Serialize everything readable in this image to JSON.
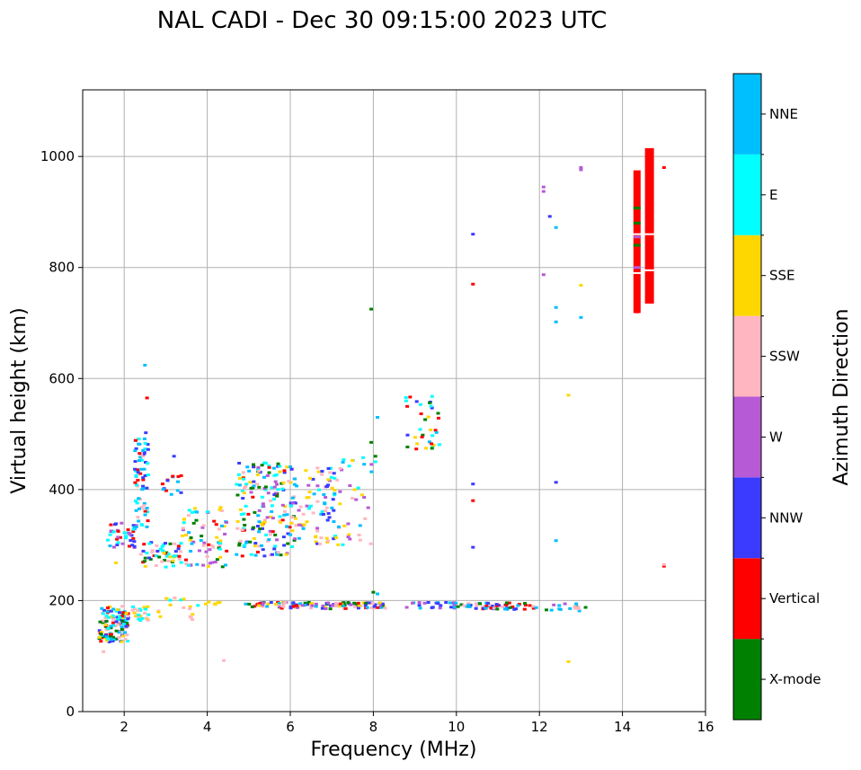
{
  "chart_data": {
    "type": "scatter",
    "title": "NAL CADI - Dec 30 09:15:00 2023 UTC",
    "xlabel": "Frequency (MHz)",
    "ylabel": "Virtual height (km)",
    "xlim": [
      1,
      16
    ],
    "ylim": [
      0,
      1120
    ],
    "xticks": [
      "2",
      "4",
      "6",
      "8",
      "10",
      "12",
      "14",
      "16"
    ],
    "yticks": [
      "0",
      "200",
      "400",
      "600",
      "800",
      "1000"
    ],
    "grid": true,
    "colorbar": {
      "label": "Azimuth Direction",
      "categories": [
        {
          "name": "X-mode",
          "color": "#008000"
        },
        {
          "name": "Vertical",
          "color": "#ff0000"
        },
        {
          "name": "NNW",
          "color": "#3b3bff"
        },
        {
          "name": "W",
          "color": "#b65ad6"
        },
        {
          "name": "SSW",
          "color": "#ffb6c1"
        },
        {
          "name": "SSE",
          "color": "#ffd700"
        },
        {
          "name": "E",
          "color": "#00ffff"
        },
        {
          "name": "NNE",
          "color": "#00bfff"
        }
      ]
    },
    "echoes": [
      {
        "f": 14.35,
        "h": 720,
        "dir": "Vertical"
      },
      {
        "f": 14.35,
        "h": 745,
        "dir": "Vertical"
      },
      {
        "f": 14.35,
        "h": 790,
        "dir": "Vertical"
      },
      {
        "f": 14.35,
        "h": 830,
        "dir": "Vertical"
      },
      {
        "f": 14.35,
        "h": 870,
        "dir": "Vertical"
      },
      {
        "f": 14.35,
        "h": 910,
        "dir": "Vertical"
      },
      {
        "f": 14.35,
        "h": 950,
        "dir": "Vertical"
      },
      {
        "f": 14.35,
        "h": 970,
        "dir": "Vertical"
      },
      {
        "f": 14.65,
        "h": 740,
        "dir": "Vertical"
      },
      {
        "f": 14.65,
        "h": 790,
        "dir": "Vertical"
      },
      {
        "f": 14.65,
        "h": 830,
        "dir": "Vertical"
      },
      {
        "f": 14.65,
        "h": 880,
        "dir": "Vertical"
      },
      {
        "f": 14.65,
        "h": 920,
        "dir": "Vertical"
      },
      {
        "f": 14.65,
        "h": 960,
        "dir": "Vertical"
      },
      {
        "f": 14.65,
        "h": 1000,
        "dir": "Vertical"
      },
      {
        "f": 14.35,
        "h": 840,
        "dir": "X-mode"
      },
      {
        "f": 14.35,
        "h": 880,
        "dir": "X-mode"
      },
      {
        "f": 14.35,
        "h": 905,
        "dir": "X-mode"
      },
      {
        "f": 14.35,
        "h": 855,
        "dir": "W"
      },
      {
        "f": 14.35,
        "h": 800,
        "dir": "W"
      },
      {
        "f": 15.0,
        "h": 980,
        "dir": "Vertical"
      },
      {
        "f": 15.0,
        "h": 262,
        "dir": "Vertical"
      },
      {
        "f": 15.0,
        "h": 265,
        "dir": "SSW"
      },
      {
        "f": 12.1,
        "h": 945,
        "dir": "W"
      },
      {
        "f": 12.1,
        "h": 937,
        "dir": "W"
      },
      {
        "f": 12.1,
        "h": 787,
        "dir": "W"
      },
      {
        "f": 12.25,
        "h": 892,
        "dir": "NNW"
      },
      {
        "f": 12.4,
        "h": 872,
        "dir": "NNE"
      },
      {
        "f": 12.4,
        "h": 728,
        "dir": "NNE"
      },
      {
        "f": 12.4,
        "h": 702,
        "dir": "NNE"
      },
      {
        "f": 12.4,
        "h": 413,
        "dir": "NNW"
      },
      {
        "f": 12.4,
        "h": 308,
        "dir": "NNE"
      },
      {
        "f": 12.7,
        "h": 570,
        "dir": "SSE"
      },
      {
        "f": 12.7,
        "h": 90,
        "dir": "SSE"
      },
      {
        "f": 13.0,
        "h": 980,
        "dir": "W"
      },
      {
        "f": 13.0,
        "h": 976,
        "dir": "W"
      },
      {
        "f": 13.0,
        "h": 768,
        "dir": "SSE"
      },
      {
        "f": 13.0,
        "h": 710,
        "dir": "NNE"
      },
      {
        "f": 10.4,
        "h": 860,
        "dir": "NNW"
      },
      {
        "f": 10.4,
        "h": 770,
        "dir": "Vertical"
      },
      {
        "f": 10.4,
        "h": 410,
        "dir": "NNW"
      },
      {
        "f": 10.4,
        "h": 380,
        "dir": "Vertical"
      },
      {
        "f": 10.4,
        "h": 296,
        "dir": "NNW"
      },
      {
        "f": 7.95,
        "h": 725,
        "dir": "X-mode"
      },
      {
        "f": 8.1,
        "h": 530,
        "dir": "NNE"
      },
      {
        "f": 7.95,
        "h": 485,
        "dir": "X-mode"
      },
      {
        "f": 8.05,
        "h": 460,
        "dir": "X-mode"
      },
      {
        "f": 8.05,
        "h": 450,
        "dir": "E"
      },
      {
        "f": 8.0,
        "h": 215,
        "dir": "X-mode"
      },
      {
        "f": 8.1,
        "h": 212,
        "dir": "NNE"
      },
      {
        "f": 4.4,
        "h": 92,
        "dir": "SSW"
      },
      {
        "f": 1.5,
        "h": 108,
        "dir": "SSW"
      },
      {
        "f": 1.8,
        "h": 268,
        "dir": "SSE"
      },
      {
        "f": 2.5,
        "h": 624,
        "dir": "NNE"
      },
      {
        "f": 2.55,
        "h": 565,
        "dir": "Vertical"
      },
      {
        "f": 3.2,
        "h": 460,
        "dir": "NNW"
      }
    ],
    "clusters": [
      {
        "f": [
          1.4,
          2.1
        ],
        "h": [
          125,
          190
        ],
        "n": 140,
        "dirs": [
          "NNE",
          "SSE",
          "E",
          "SSW",
          "NNW",
          "Vertical",
          "X-mode"
        ]
      },
      {
        "f": [
          2.2,
          2.6
        ],
        "h": [
          160,
          190
        ],
        "n": 25,
        "dirs": [
          "SSW",
          "E",
          "SSE"
        ]
      },
      {
        "f": [
          2.8,
          3.8
        ],
        "h": [
          165,
          210
        ],
        "n": 18,
        "dirs": [
          "SSE",
          "SSW",
          "E"
        ]
      },
      {
        "f": [
          3.9,
          4.3
        ],
        "h": [
          193,
          198
        ],
        "n": 6,
        "dirs": [
          "SSE"
        ]
      },
      {
        "f": [
          1.6,
          2.3
        ],
        "h": [
          295,
          340
        ],
        "n": 40,
        "dirs": [
          "NNE",
          "Vertical",
          "E",
          "NNW",
          "W"
        ]
      },
      {
        "f": [
          2.25,
          2.6
        ],
        "h": [
          330,
          510
        ],
        "n": 70,
        "dirs": [
          "NNE",
          "Vertical",
          "E",
          "SSW",
          "NNW"
        ]
      },
      {
        "f": [
          2.4,
          3.4
        ],
        "h": [
          260,
          305
        ],
        "n": 55,
        "dirs": [
          "SSW",
          "SSE",
          "Vertical",
          "E",
          "NNW",
          "X-mode"
        ]
      },
      {
        "f": [
          2.9,
          3.4
        ],
        "h": [
          380,
          430
        ],
        "n": 14,
        "dirs": [
          "NNE",
          "Vertical",
          "NNW"
        ]
      },
      {
        "f": [
          3.4,
          4.5
        ],
        "h": [
          260,
          370
        ],
        "n": 70,
        "dirs": [
          "SSW",
          "SSE",
          "Vertical",
          "NNE",
          "X-mode",
          "E",
          "W"
        ]
      },
      {
        "f": [
          4.7,
          6.1
        ],
        "h": [
          280,
          450
        ],
        "n": 180,
        "dirs": [
          "SSE",
          "NNE",
          "E",
          "SSW",
          "W",
          "NNW",
          "X-mode",
          "Vertical"
        ]
      },
      {
        "f": [
          6.0,
          7.2
        ],
        "h": [
          300,
          440
        ],
        "n": 90,
        "dirs": [
          "SSE",
          "E",
          "NNE",
          "SSW",
          "NNW",
          "W"
        ]
      },
      {
        "f": [
          7.1,
          8.0
        ],
        "h": [
          300,
          460
        ],
        "n": 35,
        "dirs": [
          "E",
          "SSE",
          "NNE",
          "SSW",
          "W"
        ]
      },
      {
        "f": [
          8.75,
          9.6
        ],
        "h": [
          470,
          570
        ],
        "n": 35,
        "dirs": [
          "E",
          "NNE",
          "Vertical",
          "X-mode",
          "NNW",
          "SSE"
        ]
      },
      {
        "f": [
          4.9,
          8.3
        ],
        "h": [
          185,
          197
        ],
        "n": 120,
        "dirs": [
          "NNW",
          "W",
          "SSE",
          "SSW",
          "Vertical",
          "NNE",
          "X-mode"
        ]
      },
      {
        "f": [
          8.8,
          10.0
        ],
        "h": [
          185,
          197
        ],
        "n": 25,
        "dirs": [
          "NNW",
          "W",
          "NNE"
        ]
      },
      {
        "f": [
          10.0,
          11.9
        ],
        "h": [
          184,
          196
        ],
        "n": 60,
        "dirs": [
          "NNE",
          "X-mode",
          "Vertical",
          "NNW",
          "SSW"
        ]
      },
      {
        "f": [
          11.9,
          13.2
        ],
        "h": [
          180,
          195
        ],
        "n": 18,
        "dirs": [
          "X-mode",
          "NNE",
          "W",
          "SSW"
        ]
      }
    ]
  }
}
